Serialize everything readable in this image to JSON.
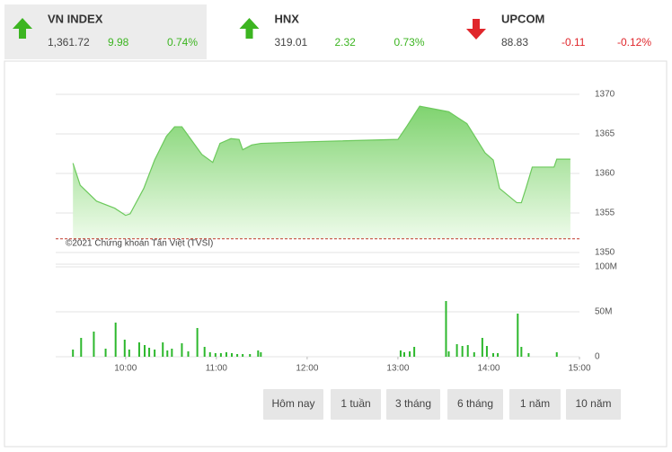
{
  "tabs": [
    {
      "name": "VN INDEX",
      "value": "1,361.72",
      "change": 9.98,
      "percent": "0.74%",
      "direction": "up",
      "active": true
    },
    {
      "name": "HNX",
      "value": "319.01",
      "change": 2.32,
      "percent": "0.73%",
      "direction": "up",
      "active": false
    },
    {
      "name": "UPCOM",
      "value": "88.83",
      "change": -0.11,
      "percent": "-0.12%",
      "direction": "down",
      "active": false
    }
  ],
  "chart_data": [
    {
      "type": "area",
      "annotation": "©2021 Chứng khoán Tân Việt (TVSI)",
      "x": [
        9.42,
        9.5,
        9.68,
        9.88,
        10.0,
        10.05,
        10.2,
        10.32,
        10.45,
        10.54,
        10.62,
        10.72,
        10.84,
        10.96,
        11.04,
        11.16,
        11.25,
        11.29,
        11.39,
        11.49,
        12.0,
        13.0,
        13.1,
        13.24,
        13.56,
        13.76,
        13.96,
        14.05,
        14.12,
        14.31,
        14.36,
        14.41,
        14.48,
        14.72,
        14.75,
        14.9
      ],
      "values": [
        1361.3,
        1358.5,
        1356.5,
        1355.6,
        1354.7,
        1354.9,
        1358.1,
        1361.7,
        1364.7,
        1365.9,
        1365.9,
        1364.3,
        1362.4,
        1361.4,
        1363.8,
        1364.4,
        1364.3,
        1363.0,
        1363.6,
        1363.8,
        1364.0,
        1364.3,
        1366.0,
        1368.5,
        1367.8,
        1366.3,
        1362.6,
        1361.7,
        1358.1,
        1356.3,
        1356.3,
        1358.1,
        1360.8,
        1360.8,
        1361.8,
        1361.8
      ],
      "color": "#6cc95c",
      "reference_line": 1351.74,
      "reference_color": "#c0392b",
      "xlim": [
        9.23,
        15
      ],
      "ylim": [
        1350,
        1370
      ],
      "yticks": [
        1350,
        1355,
        1360,
        1365,
        1370
      ],
      "grid": true
    },
    {
      "type": "bar",
      "x": [
        9.42,
        9.51,
        9.65,
        9.78,
        9.89,
        9.99,
        10.04,
        10.15,
        10.21,
        10.26,
        10.32,
        10.41,
        10.46,
        10.51,
        10.62,
        10.69,
        10.79,
        10.87,
        10.93,
        10.99,
        11.05,
        11.11,
        11.17,
        11.23,
        11.29,
        11.37,
        11.46,
        11.49,
        13.03,
        13.07,
        13.13,
        13.18,
        13.53,
        13.56,
        13.65,
        13.71,
        13.77,
        13.84,
        13.93,
        13.98,
        14.05,
        14.1,
        14.32,
        14.36,
        14.44,
        14.75
      ],
      "values": [
        8,
        21,
        28,
        9,
        38,
        19,
        8,
        16,
        13,
        10,
        8,
        16,
        7,
        9,
        15,
        6,
        32,
        11,
        5,
        4,
        4,
        5,
        4,
        3,
        3,
        3,
        7,
        5,
        7,
        5,
        6,
        11,
        62,
        6,
        14,
        12,
        13,
        5,
        21,
        12,
        4,
        4,
        48,
        11,
        4,
        5
      ],
      "color": "#2db82d",
      "xlim": [
        9.23,
        15
      ],
      "xticks": [
        {
          "value": 10,
          "label": "10:00"
        },
        {
          "value": 11,
          "label": "11:00"
        },
        {
          "value": 12,
          "label": "12:00"
        },
        {
          "value": 13,
          "label": "13:00"
        },
        {
          "value": 14,
          "label": "14:00"
        },
        {
          "value": 15,
          "label": "15:00"
        }
      ],
      "ylim": [
        0,
        100
      ],
      "yticks": [
        0,
        {
          "value": 50,
          "label": "50M"
        },
        {
          "value": 100,
          "label": "100M"
        }
      ],
      "grid": true
    }
  ],
  "ranges": [
    "Hôm nay",
    "1 tuần",
    "3 tháng",
    "6 tháng",
    "1 năm",
    "10 năm"
  ]
}
